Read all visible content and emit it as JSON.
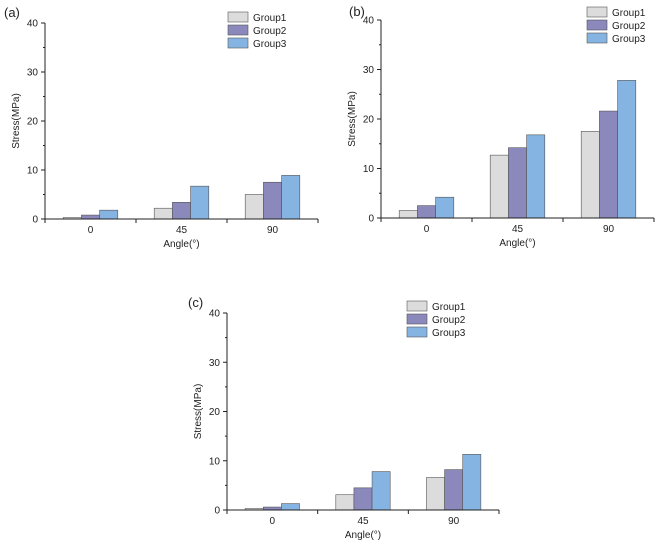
{
  "colors": {
    "Group1": "#dcdcdc",
    "Group2": "#8b88bc",
    "Group3": "#86b4e2"
  },
  "chart_data": [
    {
      "type": "bar",
      "panel_label": "(a)",
      "categories": [
        "0",
        "45",
        "90"
      ],
      "series": [
        {
          "name": "Group1",
          "values": [
            0.3,
            2.2,
            5.0
          ]
        },
        {
          "name": "Group2",
          "values": [
            0.8,
            3.4,
            7.5
          ]
        },
        {
          "name": "Group3",
          "values": [
            1.8,
            6.7,
            8.9
          ]
        }
      ],
      "xlabel": "Angle(°)",
      "ylabel": "Stress(MPa)",
      "ylim": [
        0,
        40
      ],
      "yticks": [
        "0",
        "10",
        "20",
        "30",
        "40"
      ],
      "legend": "top-right"
    },
    {
      "type": "bar",
      "panel_label": "(b)",
      "categories": [
        "0",
        "45",
        "90"
      ],
      "series": [
        {
          "name": "Group1",
          "values": [
            1.5,
            12.7,
            17.5
          ]
        },
        {
          "name": "Group2",
          "values": [
            2.5,
            14.2,
            21.6
          ]
        },
        {
          "name": "Group3",
          "values": [
            4.2,
            16.8,
            27.8
          ]
        }
      ],
      "xlabel": "Angle(°)",
      "ylabel": "Stress(MPa)",
      "ylim": [
        0,
        40
      ],
      "yticks": [
        "0",
        "10",
        "20",
        "30",
        "40"
      ],
      "legend": "top-right"
    },
    {
      "type": "bar",
      "panel_label": "(c)",
      "categories": [
        "0",
        "45",
        "90"
      ],
      "series": [
        {
          "name": "Group1",
          "values": [
            0.3,
            3.1,
            6.6
          ]
        },
        {
          "name": "Group2",
          "values": [
            0.6,
            4.5,
            8.2
          ]
        },
        {
          "name": "Group3",
          "values": [
            1.3,
            7.8,
            11.3
          ]
        }
      ],
      "xlabel": "Angle(°)",
      "ylabel": "Stress(MPa)",
      "ylim": [
        0,
        40
      ],
      "yticks": [
        "0",
        "10",
        "20",
        "30",
        "40"
      ],
      "legend": "top-right"
    }
  ]
}
